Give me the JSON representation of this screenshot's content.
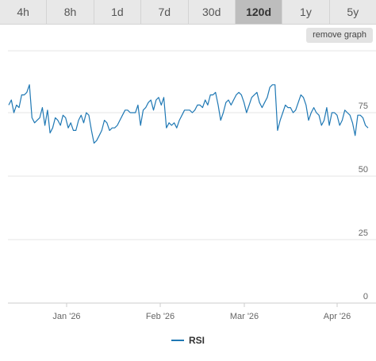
{
  "tabs": [
    {
      "label": "4h",
      "active": false
    },
    {
      "label": "8h",
      "active": false
    },
    {
      "label": "1d",
      "active": false
    },
    {
      "label": "7d",
      "active": false
    },
    {
      "label": "30d",
      "active": false
    },
    {
      "label": "120d",
      "active": true
    },
    {
      "label": "1y",
      "active": false
    },
    {
      "label": "5y",
      "active": false
    }
  ],
  "remove_graph_label": "remove graph",
  "legend": {
    "label": "RSI"
  },
  "colors": {
    "line": "#1f78b4",
    "grid": "#e4e4e4",
    "axis": "#cccccc",
    "tick_text": "#666666"
  },
  "chart_data": {
    "type": "line",
    "title": "",
    "xlabel": "",
    "ylabel": "",
    "ylim": [
      0,
      100
    ],
    "y_ticks": [
      0,
      25,
      50,
      75
    ],
    "x_ticks": [
      "Jan '26",
      "Feb '26",
      "Mar '26",
      "Apr '26"
    ],
    "grid": true,
    "legend_position": "bottom-center",
    "series": [
      {
        "name": "RSI",
        "values": [
          78,
          80,
          75,
          78,
          77,
          82,
          82,
          83,
          86,
          73,
          71,
          72,
          73,
          77,
          70,
          76,
          67,
          69,
          73,
          72,
          70,
          74,
          73,
          69,
          71,
          68,
          68,
          72,
          74,
          71,
          75,
          74,
          68,
          63,
          64,
          66,
          68,
          72,
          71,
          68,
          69,
          69,
          70,
          72,
          74,
          76,
          76,
          75,
          75,
          75,
          78,
          70,
          76,
          77,
          79,
          80,
          76,
          80,
          81,
          78,
          81,
          69,
          71,
          70,
          71,
          69,
          72,
          74,
          76,
          76,
          76,
          75,
          76,
          78,
          78,
          77,
          80,
          78,
          82,
          82,
          83,
          78,
          72,
          75,
          79,
          80,
          78,
          80,
          82,
          83,
          82,
          79,
          75,
          78,
          81,
          82,
          83,
          79,
          77,
          79,
          81,
          85,
          86,
          86,
          68,
          72,
          75,
          78,
          77,
          77,
          75,
          76,
          79,
          82,
          81,
          78,
          72,
          75,
          77,
          75,
          74,
          70,
          72,
          77,
          70,
          75,
          75,
          74,
          70,
          72,
          76,
          75,
          74,
          71,
          66,
          74,
          74,
          73,
          70,
          69
        ]
      }
    ]
  }
}
